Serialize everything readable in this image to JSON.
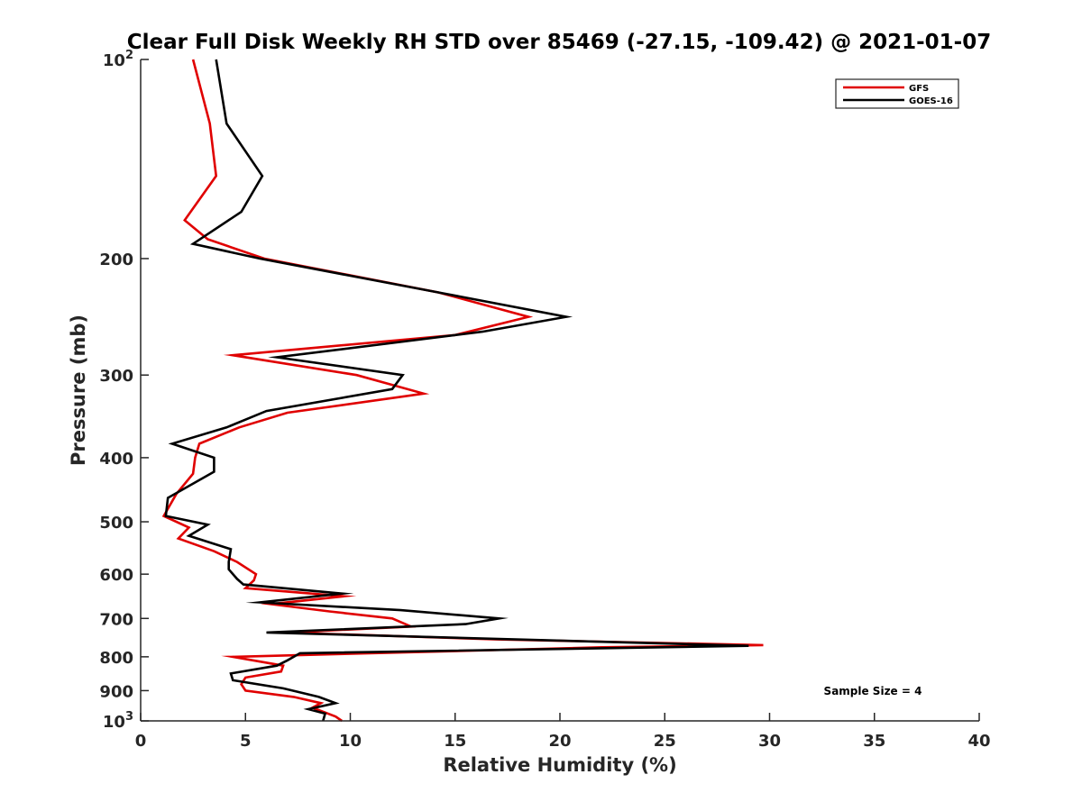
{
  "chart_data": {
    "type": "line",
    "title": "Clear Full Disk Weekly RH STD over 85469 (-27.15, -109.42) @ 2021-01-07",
    "xlabel": "Relative Humidity (%)",
    "ylabel": "Pressure (mb)",
    "xlim": [
      0,
      40
    ],
    "ylim": [
      100,
      1000
    ],
    "y_scale": "log",
    "y_reversed": true,
    "x_ticks": [
      "0",
      "5",
      "10",
      "15",
      "20",
      "25",
      "30",
      "35",
      "40"
    ],
    "y_ticks": [
      {
        "value": 100,
        "base": "10",
        "exp": "2"
      },
      {
        "value": 200,
        "label": "200"
      },
      {
        "value": 300,
        "label": "300"
      },
      {
        "value": 400,
        "label": "400"
      },
      {
        "value": 500,
        "label": "500"
      },
      {
        "value": 600,
        "label": "600"
      },
      {
        "value": 700,
        "label": "700"
      },
      {
        "value": 800,
        "label": "800"
      },
      {
        "value": 900,
        "label": "900"
      },
      {
        "value": 1000,
        "base": "10",
        "exp": "3"
      }
    ],
    "grid": false,
    "legend_position": "top-right",
    "annotation": "Sample Size = 4",
    "series": [
      {
        "name": "GFS",
        "color": "#e00000",
        "points": [
          [
            2.5,
            100
          ],
          [
            3.3,
            125
          ],
          [
            3.6,
            150
          ],
          [
            2.1,
            175
          ],
          [
            3.2,
            187
          ],
          [
            5.9,
            200
          ],
          [
            14.2,
            225
          ],
          [
            18.5,
            245
          ],
          [
            15.0,
            261
          ],
          [
            4.4,
            280
          ],
          [
            10.3,
            300
          ],
          [
            13.5,
            320
          ],
          [
            7.0,
            342
          ],
          [
            4.7,
            360
          ],
          [
            2.8,
            381
          ],
          [
            2.6,
            400
          ],
          [
            2.5,
            423
          ],
          [
            1.7,
            454
          ],
          [
            1.1,
            490
          ],
          [
            2.3,
            510
          ],
          [
            1.8,
            530
          ],
          [
            3.5,
            554
          ],
          [
            4.6,
            575
          ],
          [
            5.5,
            600
          ],
          [
            5.4,
            613
          ],
          [
            5.0,
            630
          ],
          [
            9.7,
            648
          ],
          [
            6.2,
            666
          ],
          [
            9.0,
            683
          ],
          [
            12.0,
            700
          ],
          [
            12.9,
            720
          ],
          [
            7.0,
            735
          ],
          [
            17.0,
            753
          ],
          [
            29.7,
            768
          ],
          [
            22.0,
            774
          ],
          [
            4.4,
            800
          ],
          [
            6.8,
            825
          ],
          [
            6.7,
            842
          ],
          [
            5.0,
            860
          ],
          [
            4.8,
            880
          ],
          [
            5.0,
            900
          ],
          [
            7.3,
            920
          ],
          [
            8.6,
            940
          ],
          [
            8.2,
            955
          ],
          [
            9.3,
            985
          ],
          [
            9.6,
            1000
          ]
        ]
      },
      {
        "name": "GOES-16",
        "color": "#000000",
        "points": [
          [
            3.6,
            100
          ],
          [
            4.1,
            125
          ],
          [
            5.8,
            150
          ],
          [
            4.8,
            170
          ],
          [
            2.5,
            190
          ],
          [
            5.7,
            200
          ],
          [
            14.2,
            225
          ],
          [
            20.3,
            245
          ],
          [
            16.3,
            258
          ],
          [
            6.5,
            282
          ],
          [
            12.5,
            300
          ],
          [
            12.0,
            315
          ],
          [
            6.0,
            340
          ],
          [
            4.1,
            360
          ],
          [
            1.5,
            381
          ],
          [
            3.5,
            400
          ],
          [
            3.5,
            420
          ],
          [
            1.3,
            460
          ],
          [
            1.2,
            490
          ],
          [
            3.2,
            505
          ],
          [
            2.3,
            525
          ],
          [
            4.3,
            550
          ],
          [
            4.2,
            575
          ],
          [
            4.2,
            590
          ],
          [
            4.6,
            610
          ],
          [
            4.9,
            622
          ],
          [
            9.6,
            642
          ],
          [
            5.7,
            662
          ],
          [
            12.4,
            680
          ],
          [
            17.1,
            700
          ],
          [
            15.5,
            714
          ],
          [
            6.0,
            735
          ],
          [
            29.0,
            770
          ],
          [
            7.6,
            790
          ],
          [
            7.0,
            810
          ],
          [
            6.5,
            825
          ],
          [
            4.3,
            848
          ],
          [
            4.4,
            868
          ],
          [
            6.8,
            893
          ],
          [
            8.5,
            920
          ],
          [
            9.3,
            940
          ],
          [
            8.0,
            960
          ],
          [
            8.8,
            975
          ],
          [
            8.7,
            1000
          ]
        ]
      }
    ]
  }
}
